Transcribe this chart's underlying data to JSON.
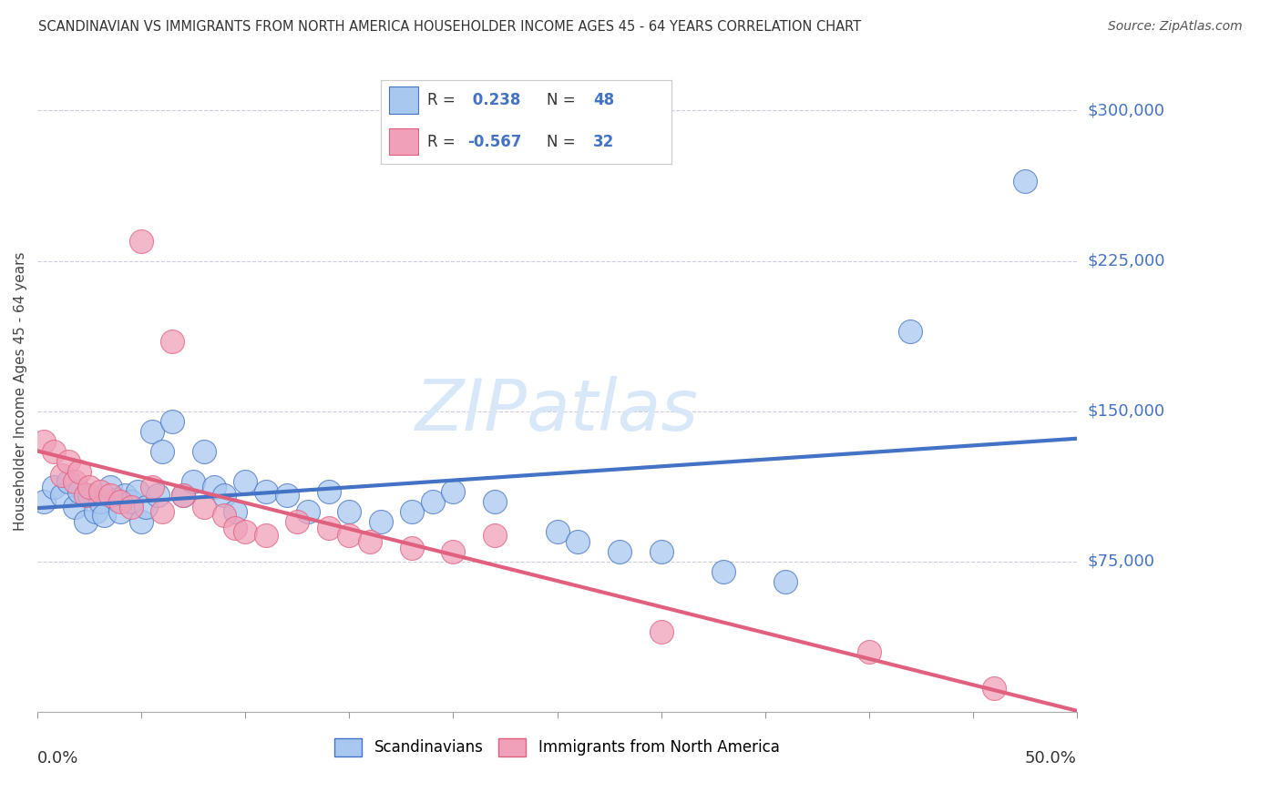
{
  "title": "SCANDINAVIAN VS IMMIGRANTS FROM NORTH AMERICA HOUSEHOLDER INCOME AGES 45 - 64 YEARS CORRELATION CHART",
  "source": "Source: ZipAtlas.com",
  "legend_label1": "Scandinavians",
  "legend_label2": "Immigrants from North America",
  "R1": 0.238,
  "N1": 48,
  "R2": -0.567,
  "N2": 32,
  "color_blue": "#A8C8F0",
  "color_pink": "#F0A0B8",
  "color_blue_line": "#4472C4",
  "color_pink_line": "#E06080",
  "color_blue_text": "#4472C4",
  "color_pink_text": "#E06080",
  "background_color": "#FFFFFF",
  "scandinavians_x": [
    0.3,
    0.8,
    1.2,
    1.5,
    1.8,
    2.0,
    2.3,
    2.5,
    2.8,
    3.0,
    3.2,
    3.5,
    3.8,
    4.0,
    4.2,
    4.5,
    4.8,
    5.0,
    5.2,
    5.5,
    5.8,
    6.0,
    6.5,
    7.0,
    7.5,
    8.0,
    8.5,
    9.0,
    9.5,
    10.0,
    11.0,
    12.0,
    13.0,
    14.0,
    15.0,
    16.5,
    18.0,
    19.0,
    20.0,
    22.0,
    25.0,
    26.0,
    28.0,
    30.0,
    33.0,
    36.0,
    42.0,
    47.5
  ],
  "scandinavians_y": [
    105000,
    112000,
    108000,
    115000,
    102000,
    110000,
    95000,
    108000,
    100000,
    105000,
    98000,
    112000,
    106000,
    100000,
    108000,
    105000,
    110000,
    95000,
    102000,
    140000,
    108000,
    130000,
    145000,
    108000,
    115000,
    130000,
    112000,
    108000,
    100000,
    115000,
    110000,
    108000,
    100000,
    110000,
    100000,
    95000,
    100000,
    105000,
    110000,
    105000,
    90000,
    85000,
    80000,
    80000,
    70000,
    65000,
    190000,
    265000
  ],
  "immigrants_x": [
    0.3,
    0.8,
    1.2,
    1.5,
    1.8,
    2.0,
    2.3,
    2.5,
    3.0,
    3.5,
    4.0,
    4.5,
    5.0,
    5.5,
    6.0,
    6.5,
    7.0,
    8.0,
    9.0,
    9.5,
    10.0,
    11.0,
    12.5,
    14.0,
    15.0,
    16.0,
    18.0,
    20.0,
    22.0,
    30.0,
    40.0,
    46.0
  ],
  "immigrants_y": [
    135000,
    130000,
    118000,
    125000,
    115000,
    120000,
    108000,
    112000,
    110000,
    108000,
    105000,
    102000,
    235000,
    112000,
    100000,
    185000,
    108000,
    102000,
    98000,
    92000,
    90000,
    88000,
    95000,
    92000,
    88000,
    85000,
    82000,
    80000,
    88000,
    40000,
    30000,
    12000
  ],
  "xmin": 0.0,
  "xmax": 50.0,
  "ymin": 0,
  "ymax": 320000,
  "ytick_vals": [
    0,
    75000,
    150000,
    225000,
    300000
  ],
  "ytick_labels": [
    "",
    "$75,000",
    "$150,000",
    "$225,000",
    "$300,000"
  ]
}
